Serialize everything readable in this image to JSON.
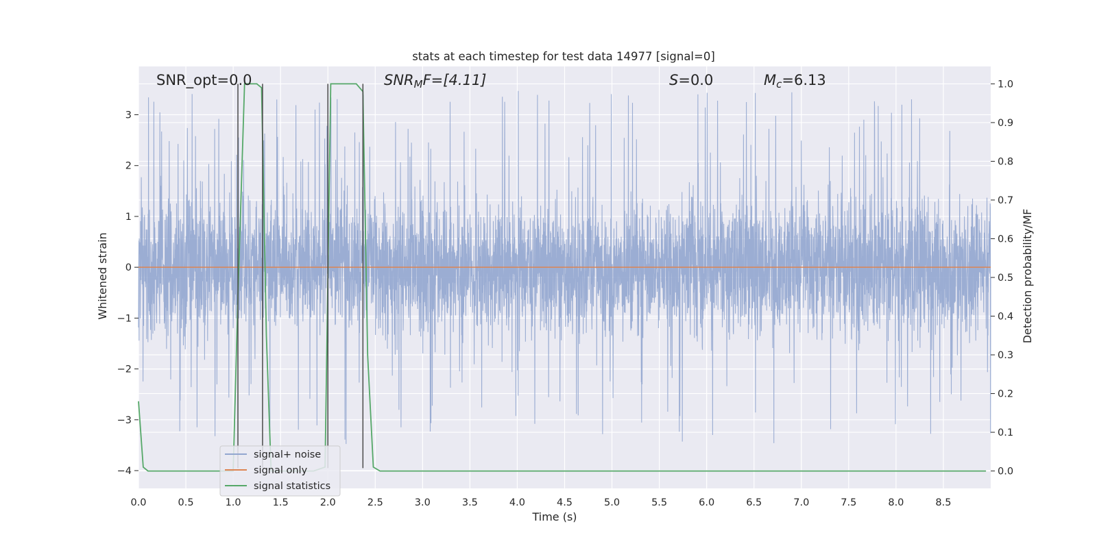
{
  "chart_data": {
    "type": "line",
    "title": "stats at each timestep for test data 14977 [signal=0]",
    "xlabel": "Time (s)",
    "ylabel": "Whitened strain",
    "y2label": "Detection probability/MF",
    "xlim": [
      0.0,
      9.0
    ],
    "ylim": [
      -4.35,
      3.95
    ],
    "y2lim": [
      -0.045,
      1.045
    ],
    "x_ticks": [
      "0.0",
      "0.5",
      "1.0",
      "1.5",
      "2.0",
      "2.5",
      "3.0",
      "3.5",
      "4.0",
      "4.5",
      "5.0",
      "5.5",
      "6.0",
      "6.5",
      "7.0",
      "7.5",
      "8.0",
      "8.5"
    ],
    "y_ticks": [
      "3",
      "2",
      "1",
      "0",
      "−1",
      "−2",
      "−3",
      "−4"
    ],
    "y2_ticks": [
      "1.0",
      "0.9",
      "0.8",
      "0.7",
      "0.6",
      "0.5",
      "0.4",
      "0.3",
      "0.2",
      "0.1",
      "0.0"
    ],
    "grid": true,
    "legend_position": "lower-left",
    "annotations": {
      "snr_opt": "SNR_opt=0.0",
      "snr_mf_base": "SNR",
      "snr_mf_sub": "M",
      "snr_mf_rest": "F=[4.11]",
      "s_sym": "S",
      "s_val": "=0.0",
      "mc_sym": "M",
      "mc_sub": "c",
      "mc_val": "=6.13"
    },
    "series": [
      {
        "name": "signal+ noise",
        "color": "#92a6cf",
        "axis": "left",
        "description_kind": "noise",
        "seed": 14977,
        "n_points": 4500,
        "typical_range": [
          -1.6,
          1.6
        ],
        "spike_range": [
          -4.0,
          3.55
        ]
      },
      {
        "name": "signal only",
        "color": "#dd8452",
        "axis": "left",
        "x": [
          0.0,
          9.0
        ],
        "y": [
          0.0,
          0.0
        ]
      },
      {
        "name": "signal statistics",
        "color": "#55a868",
        "axis": "right",
        "x": [
          0.0,
          0.05,
          0.1,
          1.0,
          1.05,
          1.12,
          1.25,
          1.3,
          1.35,
          1.4,
          1.5,
          1.85,
          1.97,
          2.03,
          2.1,
          2.3,
          2.37,
          2.42,
          2.48,
          2.55,
          8.95
        ],
        "y": [
          0.18,
          0.01,
          0.0,
          0.0,
          0.45,
          1.0,
          1.0,
          0.99,
          0.35,
          0.0,
          0.0,
          0.0,
          0.01,
          1.0,
          1.0,
          1.0,
          0.98,
          0.3,
          0.01,
          0.0,
          0.0
        ]
      }
    ],
    "vlines": {
      "color": "#4a4a4a",
      "x": [
        1.05,
        1.31,
        2.0,
        2.37
      ],
      "y_top": [
        1.0,
        1.0,
        1.0,
        1.0
      ],
      "y_bottom": [
        -3.95,
        -3.95,
        -3.95,
        -3.95
      ]
    }
  }
}
